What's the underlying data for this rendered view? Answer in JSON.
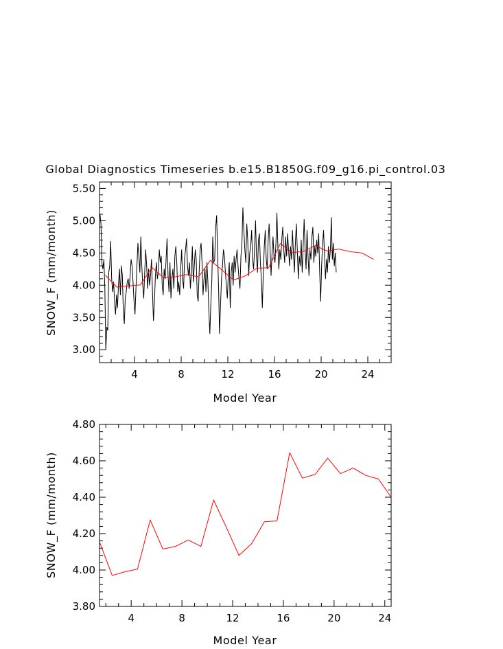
{
  "title": "Global Diagnostics Timeseries b.e15.B1850G.f09_g16.pi_control.03",
  "chart_data": [
    {
      "type": "line",
      "panel": "top",
      "xlabel": "Model Year",
      "ylabel": "SNOW_F (mm/month)",
      "xlim": [
        1,
        26
      ],
      "ylim": [
        2.8,
        5.6
      ],
      "xticks": [
        4,
        8,
        12,
        16,
        20,
        24
      ],
      "yticks": [
        3.0,
        3.5,
        4.0,
        4.5,
        5.0,
        5.5
      ],
      "ytick_labels": [
        "3.00",
        "3.50",
        "4.00",
        "4.50",
        "5.00",
        "5.50"
      ],
      "series": [
        {
          "name": "monthly",
          "color": "#000000",
          "x_start": 1.0417,
          "x_step": 0.08333,
          "values": [
            5.1,
            4.95,
            4.35,
            4.25,
            4.4,
            3.95,
            3.0,
            3.35,
            3.3,
            4.2,
            4.3,
            4.68,
            4.1,
            3.9,
            4.05,
            3.75,
            3.55,
            3.85,
            3.65,
            4.0,
            4.25,
            3.85,
            4.3,
            4.15,
            3.6,
            3.4,
            3.8,
            3.9,
            4.05,
            4.1,
            3.95,
            4.15,
            4.4,
            4.3,
            4.05,
            3.75,
            3.55,
            3.95,
            4.3,
            4.65,
            4.45,
            4.2,
            4.75,
            4.3,
            4.0,
            3.8,
            4.2,
            4.55,
            4.3,
            3.95,
            4.25,
            4.0,
            4.15,
            4.4,
            3.9,
            3.45,
            3.75,
            4.15,
            4.35,
            4.1,
            4.2,
            4.55,
            4.35,
            4.45,
            4.0,
            3.85,
            4.25,
            4.1,
            4.4,
            4.72,
            4.15,
            3.9,
            4.35,
            3.8,
            4.1,
            4.25,
            3.95,
            4.45,
            4.6,
            4.35,
            3.9,
            4.05,
            3.85,
            4.25,
            4.55,
            4.1,
            3.95,
            4.4,
            4.55,
            4.72,
            4.3,
            4.15,
            4.35,
            3.95,
            4.2,
            4.6,
            4.05,
            4.3,
            4.55,
            4.4,
            3.85,
            3.75,
            4.2,
            4.55,
            4.65,
            4.35,
            3.85,
            4.1,
            4.25,
            3.9,
            4.35,
            4.05,
            3.6,
            3.25,
            3.7,
            4.05,
            4.75,
            4.35,
            4.4,
            4.9,
            5.08,
            4.5,
            3.95,
            3.25,
            3.7,
            4.1,
            4.3,
            4.55,
            4.45,
            4.2,
            4.0,
            3.8,
            4.15,
            4.35,
            3.65,
            4.2,
            4.35,
            4.0,
            4.45,
            4.2,
            4.4,
            4.55,
            4.3,
            4.1,
            3.95,
            4.45,
            4.65,
            5.2,
            4.85,
            4.55,
            4.35,
            4.95,
            4.7,
            4.15,
            4.5,
            4.6,
            4.85,
            4.4,
            4.25,
            4.55,
            5.0,
            4.45,
            4.2,
            4.7,
            4.8,
            4.35,
            4.1,
            3.65,
            4.2,
            4.6,
            4.85,
            4.4,
            4.25,
            4.7,
            4.95,
            4.55,
            4.15,
            4.5,
            4.75,
            4.45,
            4.35,
            4.65,
            5.12,
            4.6,
            4.25,
            4.55,
            4.4,
            4.7,
            4.9,
            4.55,
            4.35,
            4.75,
            4.45,
            4.8,
            4.55,
            4.3,
            4.6,
            4.4,
            4.85,
            4.5,
            4.2,
            4.65,
            4.95,
            4.55,
            4.1,
            4.45,
            4.3,
            4.7,
            4.2,
            4.6,
            5.02,
            4.55,
            4.25,
            4.85,
            4.45,
            4.15,
            4.55,
            4.4,
            4.75,
            4.9,
            4.35,
            4.6,
            4.45,
            4.7,
            4.5,
            4.8,
            4.2,
            3.75,
            4.3,
            4.65,
            4.85,
            4.45,
            4.1,
            4.4,
            4.2,
            4.6,
            4.35,
            4.55,
            5.05,
            4.4,
            4.65,
            4.3,
            4.5,
            4.2
          ]
        },
        {
          "name": "annual mean",
          "color": "#ff0000",
          "x": [
            1.5,
            2.5,
            3.5,
            4.5,
            5.5,
            6.5,
            7.5,
            8.5,
            9.5,
            10.5,
            11.5,
            12.5,
            13.5,
            14.5,
            15.5,
            16.5,
            17.5,
            18.5,
            19.5,
            20.5,
            21.5,
            22.5,
            23.5,
            24.5
          ],
          "values": [
            4.155,
            3.97,
            3.99,
            4.005,
            4.275,
            4.115,
            4.13,
            4.165,
            4.13,
            4.385,
            4.235,
            4.08,
            4.145,
            4.265,
            4.27,
            4.645,
            4.505,
            4.525,
            4.615,
            4.53,
            4.56,
            4.52,
            4.5,
            4.4
          ]
        }
      ]
    },
    {
      "type": "line",
      "panel": "bottom",
      "xlabel": "Model Year",
      "ylabel": "SNOW_F (mm/month)",
      "xlim": [
        1.5,
        24.5
      ],
      "ylim": [
        3.8,
        4.8
      ],
      "xticks": [
        4,
        8,
        12,
        16,
        20,
        24
      ],
      "yticks": [
        3.8,
        4.0,
        4.2,
        4.4,
        4.6,
        4.8
      ],
      "ytick_labels": [
        "3.80",
        "4.00",
        "4.20",
        "4.40",
        "4.60",
        "4.80"
      ],
      "series": [
        {
          "name": "annual mean",
          "color": "#ff0000",
          "x": [
            1.5,
            2.5,
            3.5,
            4.5,
            5.5,
            6.5,
            7.5,
            8.5,
            9.5,
            10.5,
            11.5,
            12.5,
            13.5,
            14.5,
            15.5,
            16.5,
            17.5,
            18.5,
            19.5,
            20.5,
            21.5,
            22.5,
            23.5,
            24.5
          ],
          "values": [
            4.155,
            3.97,
            3.99,
            4.005,
            4.275,
            4.115,
            4.13,
            4.165,
            4.13,
            4.385,
            4.235,
            4.08,
            4.145,
            4.265,
            4.27,
            4.645,
            4.505,
            4.525,
            4.615,
            4.53,
            4.56,
            4.52,
            4.5,
            4.4
          ]
        }
      ]
    }
  ]
}
